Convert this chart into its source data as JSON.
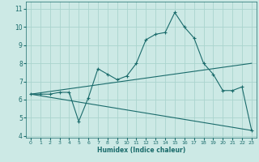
{
  "title": "",
  "xlabel": "Humidex (Indice chaleur)",
  "ylabel": "",
  "bg_color": "#cce9e5",
  "line_color": "#1a6b6b",
  "grid_color": "#aad4ce",
  "xlim": [
    -0.5,
    23.5
  ],
  "ylim": [
    3.9,
    11.4
  ],
  "xticks": [
    0,
    1,
    2,
    3,
    4,
    5,
    6,
    7,
    8,
    9,
    10,
    11,
    12,
    13,
    14,
    15,
    16,
    17,
    18,
    19,
    20,
    21,
    22,
    23
  ],
  "yticks": [
    4,
    5,
    6,
    7,
    8,
    9,
    10,
    11
  ],
  "main_x": [
    0,
    1,
    2,
    3,
    4,
    5,
    6,
    7,
    8,
    9,
    10,
    11,
    12,
    13,
    14,
    15,
    16,
    17,
    18,
    19,
    20,
    21,
    22,
    23
  ],
  "main_y": [
    6.3,
    6.3,
    6.3,
    6.4,
    6.4,
    4.8,
    6.1,
    7.7,
    7.4,
    7.1,
    7.3,
    8.0,
    9.3,
    9.6,
    9.7,
    10.8,
    10.0,
    9.4,
    8.0,
    7.4,
    6.5,
    6.5,
    6.7,
    4.3
  ],
  "line2_x": [
    0,
    23
  ],
  "line2_y": [
    6.3,
    8.0
  ],
  "line3_x": [
    0,
    23
  ],
  "line3_y": [
    6.3,
    4.3
  ]
}
